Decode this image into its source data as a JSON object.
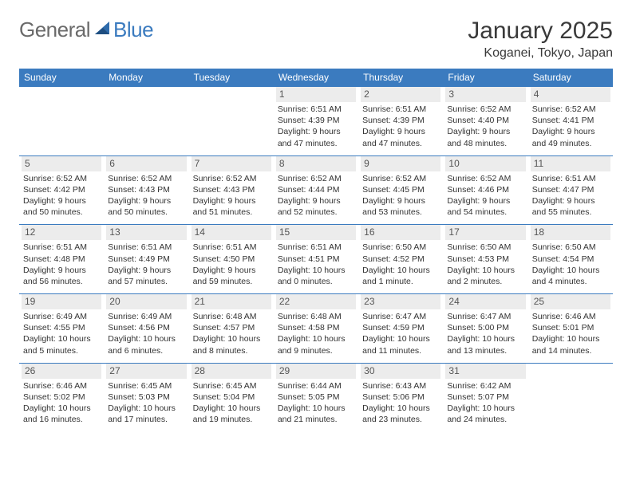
{
  "brand": {
    "part1": "General",
    "part2": "Blue"
  },
  "title": "January 2025",
  "location": "Koganei, Tokyo, Japan",
  "header_bg": "#3b7bbf",
  "header_fg": "#ffffff",
  "daynum_bg": "#ececec",
  "row_border": "#3b7bbf",
  "weekdays": [
    "Sunday",
    "Monday",
    "Tuesday",
    "Wednesday",
    "Thursday",
    "Friday",
    "Saturday"
  ],
  "weeks": [
    [
      null,
      null,
      null,
      {
        "n": "1",
        "sr": "6:51 AM",
        "ss": "4:39 PM",
        "dl": "9 hours and 47 minutes."
      },
      {
        "n": "2",
        "sr": "6:51 AM",
        "ss": "4:39 PM",
        "dl": "9 hours and 47 minutes."
      },
      {
        "n": "3",
        "sr": "6:52 AM",
        "ss": "4:40 PM",
        "dl": "9 hours and 48 minutes."
      },
      {
        "n": "4",
        "sr": "6:52 AM",
        "ss": "4:41 PM",
        "dl": "9 hours and 49 minutes."
      }
    ],
    [
      {
        "n": "5",
        "sr": "6:52 AM",
        "ss": "4:42 PM",
        "dl": "9 hours and 50 minutes."
      },
      {
        "n": "6",
        "sr": "6:52 AM",
        "ss": "4:43 PM",
        "dl": "9 hours and 50 minutes."
      },
      {
        "n": "7",
        "sr": "6:52 AM",
        "ss": "4:43 PM",
        "dl": "9 hours and 51 minutes."
      },
      {
        "n": "8",
        "sr": "6:52 AM",
        "ss": "4:44 PM",
        "dl": "9 hours and 52 minutes."
      },
      {
        "n": "9",
        "sr": "6:52 AM",
        "ss": "4:45 PM",
        "dl": "9 hours and 53 minutes."
      },
      {
        "n": "10",
        "sr": "6:52 AM",
        "ss": "4:46 PM",
        "dl": "9 hours and 54 minutes."
      },
      {
        "n": "11",
        "sr": "6:51 AM",
        "ss": "4:47 PM",
        "dl": "9 hours and 55 minutes."
      }
    ],
    [
      {
        "n": "12",
        "sr": "6:51 AM",
        "ss": "4:48 PM",
        "dl": "9 hours and 56 minutes."
      },
      {
        "n": "13",
        "sr": "6:51 AM",
        "ss": "4:49 PM",
        "dl": "9 hours and 57 minutes."
      },
      {
        "n": "14",
        "sr": "6:51 AM",
        "ss": "4:50 PM",
        "dl": "9 hours and 59 minutes."
      },
      {
        "n": "15",
        "sr": "6:51 AM",
        "ss": "4:51 PM",
        "dl": "10 hours and 0 minutes."
      },
      {
        "n": "16",
        "sr": "6:50 AM",
        "ss": "4:52 PM",
        "dl": "10 hours and 1 minute."
      },
      {
        "n": "17",
        "sr": "6:50 AM",
        "ss": "4:53 PM",
        "dl": "10 hours and 2 minutes."
      },
      {
        "n": "18",
        "sr": "6:50 AM",
        "ss": "4:54 PM",
        "dl": "10 hours and 4 minutes."
      }
    ],
    [
      {
        "n": "19",
        "sr": "6:49 AM",
        "ss": "4:55 PM",
        "dl": "10 hours and 5 minutes."
      },
      {
        "n": "20",
        "sr": "6:49 AM",
        "ss": "4:56 PM",
        "dl": "10 hours and 6 minutes."
      },
      {
        "n": "21",
        "sr": "6:48 AM",
        "ss": "4:57 PM",
        "dl": "10 hours and 8 minutes."
      },
      {
        "n": "22",
        "sr": "6:48 AM",
        "ss": "4:58 PM",
        "dl": "10 hours and 9 minutes."
      },
      {
        "n": "23",
        "sr": "6:47 AM",
        "ss": "4:59 PM",
        "dl": "10 hours and 11 minutes."
      },
      {
        "n": "24",
        "sr": "6:47 AM",
        "ss": "5:00 PM",
        "dl": "10 hours and 13 minutes."
      },
      {
        "n": "25",
        "sr": "6:46 AM",
        "ss": "5:01 PM",
        "dl": "10 hours and 14 minutes."
      }
    ],
    [
      {
        "n": "26",
        "sr": "6:46 AM",
        "ss": "5:02 PM",
        "dl": "10 hours and 16 minutes."
      },
      {
        "n": "27",
        "sr": "6:45 AM",
        "ss": "5:03 PM",
        "dl": "10 hours and 17 minutes."
      },
      {
        "n": "28",
        "sr": "6:45 AM",
        "ss": "5:04 PM",
        "dl": "10 hours and 19 minutes."
      },
      {
        "n": "29",
        "sr": "6:44 AM",
        "ss": "5:05 PM",
        "dl": "10 hours and 21 minutes."
      },
      {
        "n": "30",
        "sr": "6:43 AM",
        "ss": "5:06 PM",
        "dl": "10 hours and 23 minutes."
      },
      {
        "n": "31",
        "sr": "6:42 AM",
        "ss": "5:07 PM",
        "dl": "10 hours and 24 minutes."
      },
      null
    ]
  ],
  "labels": {
    "sunrise": "Sunrise:",
    "sunset": "Sunset:",
    "daylight": "Daylight:"
  }
}
